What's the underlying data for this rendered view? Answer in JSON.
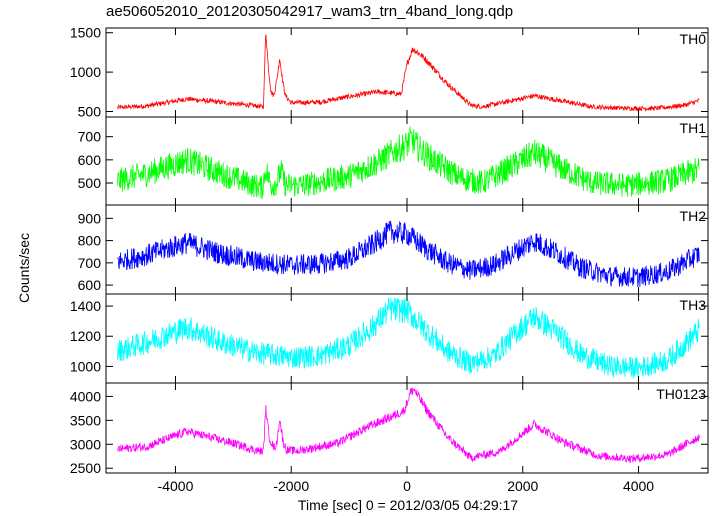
{
  "chart_data": {
    "type": "line",
    "title": "ae506052010_20120305042917_wam3_trn_4band_long.qdp",
    "xlabel": "Time [sec] 0 = 2012/03/05 04:29:17",
    "ylabel": "Counts/sec",
    "xlim": [
      -5200,
      5200
    ],
    "x_ticks": [
      -4000,
      -2000,
      0,
      2000,
      4000
    ],
    "grid": false,
    "panels": [
      {
        "name": "TH0",
        "color": "#ff0000",
        "ylim": [
          430,
          1560
        ],
        "y_ticks": [
          500,
          1000,
          1500
        ],
        "noise": 18,
        "x": [
          -5000,
          -4500,
          -3800,
          -3000,
          -2600,
          -2480,
          -2440,
          -2400,
          -2350,
          -2300,
          -2250,
          -2200,
          -2150,
          -2100,
          -2000,
          -1500,
          -1000,
          -500,
          -100,
          0,
          100,
          300,
          700,
          1100,
          1300,
          1700,
          2200,
          2700,
          3200,
          3800,
          4300,
          4800,
          5050
        ],
        "y": [
          550,
          570,
          660,
          600,
          570,
          560,
          1530,
          1100,
          750,
          700,
          900,
          1180,
          900,
          700,
          610,
          620,
          690,
          750,
          720,
          1100,
          1300,
          1180,
          850,
          580,
          560,
          620,
          700,
          630,
          560,
          540,
          540,
          580,
          640
        ]
      },
      {
        "name": "TH1",
        "color": "#00ff00",
        "ylim": [
          405,
          785
        ],
        "y_ticks": [
          500,
          600,
          700
        ],
        "noise": 34,
        "x": [
          -5000,
          -4500,
          -3800,
          -3200,
          -2700,
          -2500,
          -2440,
          -2350,
          -2250,
          -2180,
          -2100,
          -1800,
          -1000,
          -500,
          -200,
          0,
          80,
          200,
          500,
          900,
          1300,
          1800,
          2200,
          2700,
          3200,
          3800,
          4500,
          5050
        ],
        "y": [
          510,
          540,
          600,
          540,
          495,
          480,
          560,
          490,
          500,
          555,
          490,
          490,
          530,
          590,
          640,
          665,
          690,
          650,
          590,
          525,
          500,
          570,
          630,
          560,
          500,
          490,
          510,
          560
        ]
      },
      {
        "name": "TH2",
        "color": "#0000ff",
        "ylim": [
          560,
          960
        ],
        "y_ticks": [
          600,
          700,
          800,
          900
        ],
        "noise": 30,
        "x": [
          -5000,
          -4500,
          -3800,
          -3200,
          -2600,
          -2000,
          -1500,
          -1000,
          -600,
          -300,
          0,
          300,
          700,
          1100,
          1500,
          1900,
          2200,
          2600,
          3000,
          3500,
          4000,
          4500,
          5050
        ],
        "y": [
          705,
          735,
          790,
          740,
          705,
          690,
          695,
          720,
          780,
          840,
          830,
          770,
          700,
          665,
          690,
          755,
          800,
          745,
          680,
          640,
          635,
          660,
          740
        ]
      },
      {
        "name": "TH3",
        "color": "#00ffff",
        "ylim": [
          890,
          1480
        ],
        "y_ticks": [
          1000,
          1200,
          1400
        ],
        "noise": 48,
        "x": [
          -5000,
          -4500,
          -3800,
          -3200,
          -2600,
          -2000,
          -1500,
          -1000,
          -600,
          -300,
          0,
          300,
          700,
          1100,
          1500,
          1900,
          2200,
          2600,
          3000,
          3500,
          4000,
          4500,
          5050
        ],
        "y": [
          1100,
          1160,
          1260,
          1160,
          1090,
          1060,
          1070,
          1140,
          1260,
          1380,
          1370,
          1250,
          1100,
          1020,
          1070,
          1230,
          1330,
          1220,
          1080,
          1000,
          990,
          1040,
          1240
        ]
      },
      {
        "name": "TH0123",
        "color": "#ff00ff",
        "ylim": [
          2400,
          4280
        ],
        "y_ticks": [
          2500,
          3000,
          3500,
          4000
        ],
        "noise": 55,
        "x": [
          -5000,
          -4500,
          -3800,
          -3000,
          -2600,
          -2480,
          -2440,
          -2380,
          -2300,
          -2250,
          -2200,
          -2140,
          -2080,
          -1900,
          -1200,
          -700,
          -300,
          -50,
          60,
          120,
          350,
          700,
          1100,
          1600,
          2200,
          2700,
          3300,
          3900,
          4500,
          5050
        ],
        "y": [
          2900,
          2950,
          3270,
          3020,
          2870,
          2850,
          3760,
          3150,
          2930,
          3000,
          3550,
          3050,
          2880,
          2860,
          3020,
          3350,
          3560,
          3700,
          4080,
          4150,
          3700,
          3150,
          2720,
          2850,
          3420,
          3050,
          2760,
          2700,
          2780,
          3160
        ]
      }
    ]
  }
}
